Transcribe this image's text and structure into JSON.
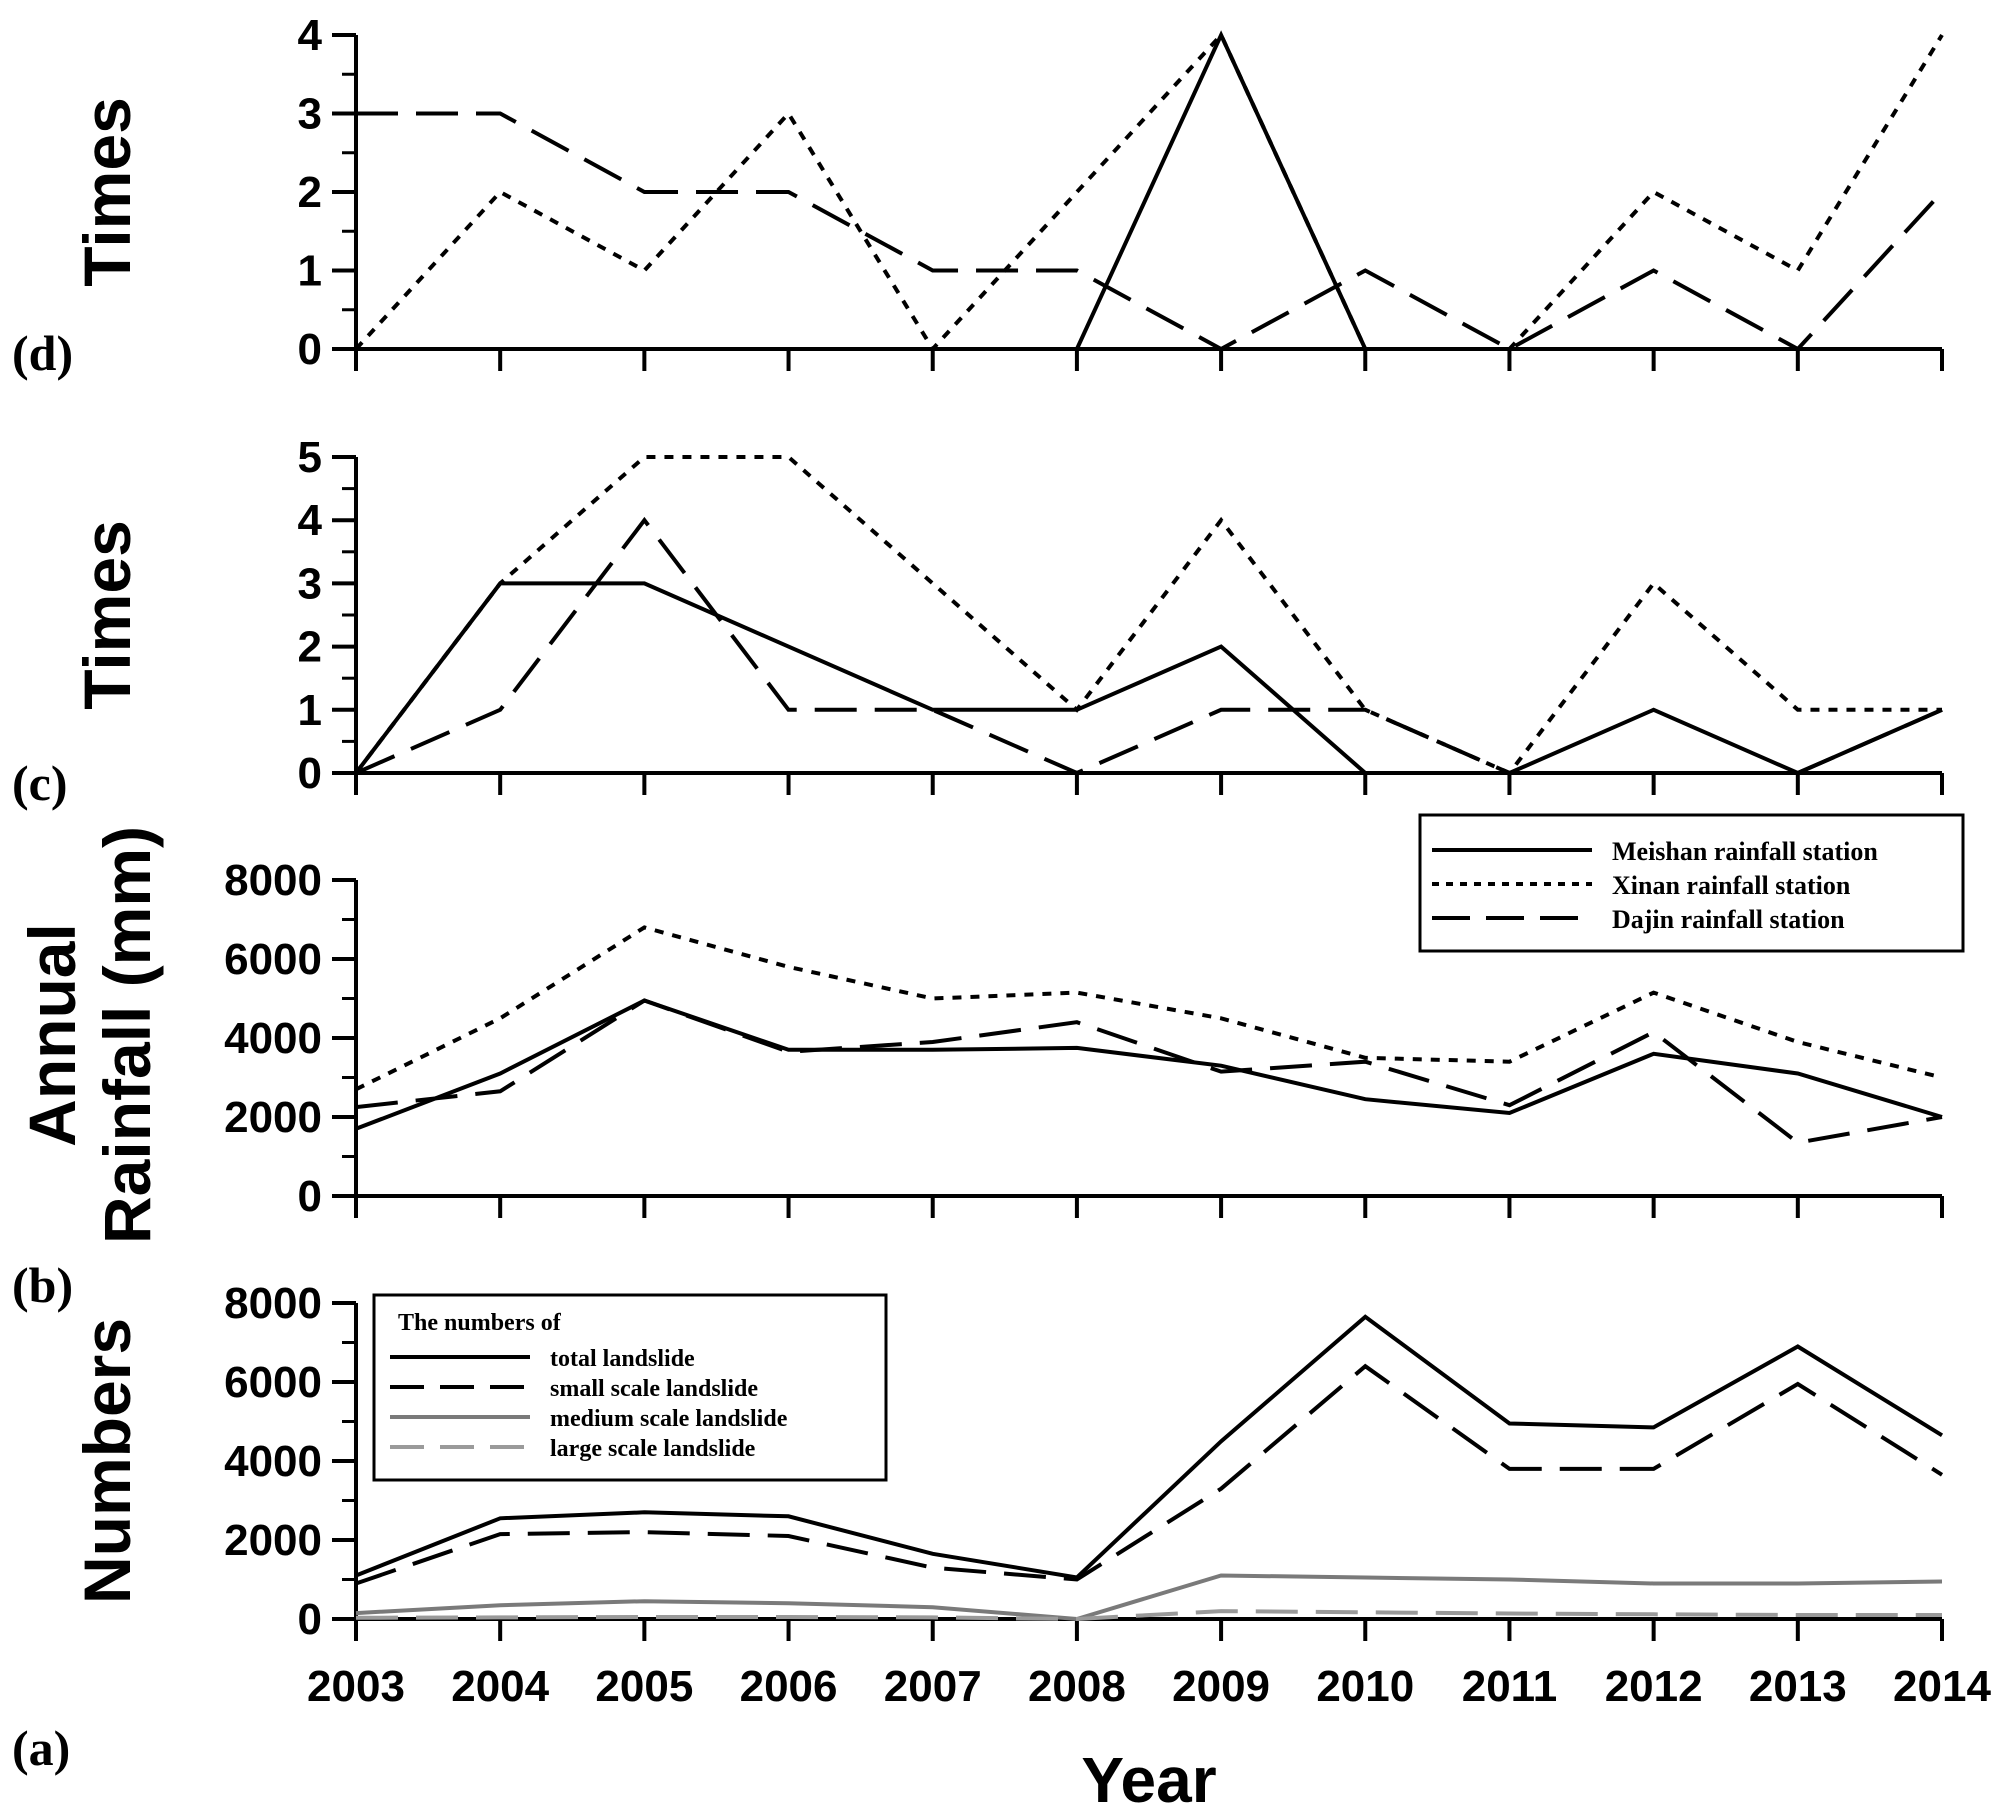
{
  "chart_data": [
    {
      "panel": "(d)",
      "type": "line",
      "ylabel": "Times",
      "ylim": [
        0,
        4
      ],
      "yticks": [
        "0",
        "1",
        "2",
        "3",
        "4"
      ],
      "categories": [
        "2003",
        "2004",
        "2005",
        "2006",
        "2007",
        "2008",
        "2009",
        "2010",
        "2011",
        "2012",
        "2013",
        "2014"
      ],
      "series": [
        {
          "name": "Meishan rainfall station",
          "style": "solid",
          "color": "#000000",
          "values": [
            0,
            0,
            0,
            0,
            0,
            0,
            4,
            0,
            0,
            0,
            0,
            0
          ]
        },
        {
          "name": "Xinan rainfall station",
          "style": "dotted",
          "color": "#000000",
          "values": [
            0,
            2,
            1,
            3,
            0,
            2,
            4,
            0,
            0,
            2,
            1,
            4
          ]
        },
        {
          "name": "Dajin rainfall station",
          "style": "dashed",
          "color": "#000000",
          "values": [
            3,
            3,
            2,
            2,
            1,
            1,
            0,
            1,
            0,
            1,
            0,
            2
          ]
        }
      ]
    },
    {
      "panel": "(c)",
      "type": "line",
      "ylabel": "Times",
      "ylim": [
        0,
        5
      ],
      "yticks": [
        "0",
        "1",
        "2",
        "3",
        "4",
        "5"
      ],
      "categories": [
        "2003",
        "2004",
        "2005",
        "2006",
        "2007",
        "2008",
        "2009",
        "2010",
        "2011",
        "2012",
        "2013",
        "2014"
      ],
      "series": [
        {
          "name": "Meishan rainfall station",
          "style": "solid",
          "color": "#000000",
          "values": [
            0,
            3,
            3,
            2,
            1,
            1,
            2,
            0,
            0,
            1,
            0,
            1
          ]
        },
        {
          "name": "Xinan rainfall station",
          "style": "dotted",
          "color": "#000000",
          "values": [
            0,
            3,
            5,
            5,
            3,
            1,
            4,
            1,
            0,
            3,
            1,
            1
          ]
        },
        {
          "name": "Dajin rainfall station",
          "style": "dashed",
          "color": "#000000",
          "values": [
            0,
            1,
            4,
            1,
            1,
            0,
            1,
            1,
            0,
            0,
            0,
            1
          ]
        }
      ]
    },
    {
      "panel": "(b)",
      "type": "line",
      "ylabel_lines": [
        "Annual",
        "Rainfall (mm)"
      ],
      "ylim": [
        0,
        8000
      ],
      "yticks": [
        "0",
        "2000",
        "4000",
        "6000",
        "8000"
      ],
      "categories": [
        "2003",
        "2004",
        "2005",
        "2006",
        "2007",
        "2008",
        "2009",
        "2010",
        "2011",
        "2012",
        "2013",
        "2014"
      ],
      "legend": {
        "placement": "top-right",
        "entries": [
          "Meishan rainfall station",
          "Xinan rainfall station",
          "Dajin rainfall station"
        ]
      },
      "series": [
        {
          "name": "Meishan rainfall station",
          "style": "solid",
          "color": "#000000",
          "values": [
            1700,
            3100,
            4950,
            3700,
            3700,
            3750,
            3300,
            2450,
            2100,
            3600,
            3100,
            2000
          ]
        },
        {
          "name": "Xinan rainfall station",
          "style": "dotted",
          "color": "#000000",
          "values": [
            2700,
            4500,
            6800,
            5800,
            5000,
            5150,
            4500,
            3500,
            3400,
            5150,
            3900,
            3000
          ]
        },
        {
          "name": "Dajin rainfall station",
          "style": "dashed",
          "color": "#000000",
          "values": [
            2250,
            2650,
            4950,
            3650,
            3900,
            4400,
            3150,
            3400,
            2300,
            4150,
            1350,
            2000
          ]
        }
      ]
    },
    {
      "panel": "(a)",
      "type": "line",
      "ylabel": "Numbers",
      "xlabel": "Year",
      "ylim": [
        0,
        8000
      ],
      "yticks": [
        "0",
        "2000",
        "4000",
        "6000",
        "8000"
      ],
      "categories": [
        "2003",
        "2004",
        "2005",
        "2006",
        "2007",
        "2008",
        "2009",
        "2010",
        "2011",
        "2012",
        "2013",
        "2014"
      ],
      "legend": {
        "placement": "top-left",
        "title": "The numbers of",
        "entries": [
          "total landslide",
          "small scale landslide",
          "medium scale landslide",
          "large scale landslide"
        ]
      },
      "series": [
        {
          "name": "total landslide",
          "style": "solid",
          "color": "#000000",
          "values": [
            1100,
            2550,
            2700,
            2600,
            1650,
            1050,
            4500,
            7650,
            4950,
            4850,
            6900,
            4650
          ]
        },
        {
          "name": "small scale landslide",
          "style": "dashed",
          "color": "#000000",
          "values": [
            900,
            2150,
            2200,
            2100,
            1300,
            1000,
            3300,
            6400,
            3800,
            3800,
            5950,
            3650
          ]
        },
        {
          "name": "medium scale landslide",
          "style": "solid",
          "color": "#7a7a7a",
          "values": [
            150,
            350,
            450,
            400,
            300,
            0,
            1100,
            1050,
            1000,
            900,
            900,
            950
          ]
        },
        {
          "name": "large scale landslide",
          "style": "dashed",
          "color": "#9a9a9a",
          "values": [
            30,
            40,
            50,
            50,
            40,
            0,
            200,
            170,
            140,
            120,
            100,
            100
          ]
        }
      ]
    }
  ]
}
